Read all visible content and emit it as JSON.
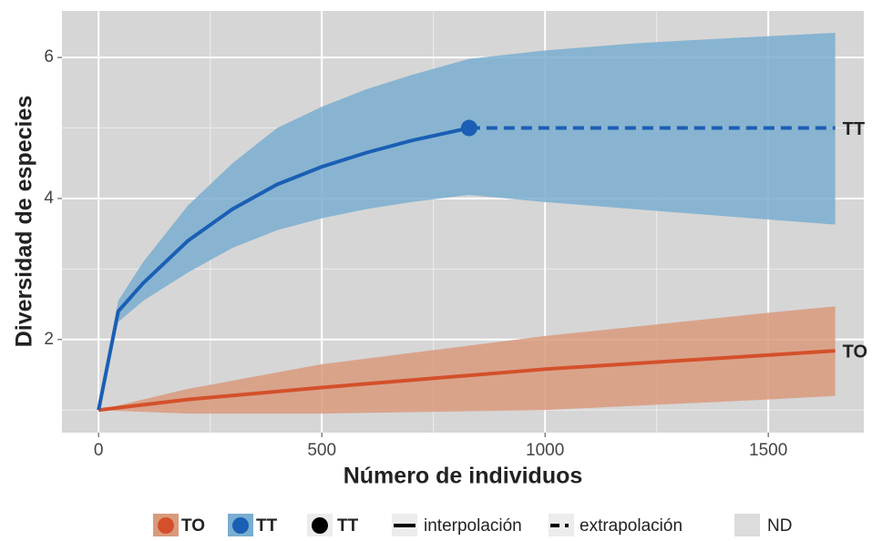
{
  "chart_data": {
    "type": "rarefaction",
    "x_label": "Número de individuos",
    "y_label": "Diversidad de especies",
    "xlim": [
      -82,
      1714
    ],
    "ylim": [
      0.68,
      6.66
    ],
    "xticks": [
      0,
      500,
      1000,
      1500
    ],
    "yticks": [
      2,
      4,
      6
    ],
    "x_minor_grid": [
      250,
      750,
      1250
    ],
    "y_minor_grid": [
      1,
      3,
      5
    ],
    "grid": true,
    "panel_color": "#d6d6d6",
    "series": [
      {
        "name": "TO",
        "color": "#d4502a",
        "band_color": "#d99a7c",
        "x": [
          0,
          200,
          500,
          1000,
          1500,
          1650
        ],
        "values": [
          1,
          1.15,
          1.32,
          1.58,
          1.78,
          1.84
        ],
        "upper": [
          1,
          1.3,
          1.65,
          2.05,
          2.38,
          2.47
        ],
        "lower": [
          1,
          0.95,
          0.95,
          1.0,
          1.15,
          1.2
        ]
      },
      {
        "name": "TT",
        "color": "#1a5fb4",
        "band_color": "#7aaed0",
        "x": [
          0,
          44,
          100,
          200,
          300,
          400,
          500,
          600,
          700,
          830,
          1000,
          1200,
          1400,
          1650
        ],
        "values": [
          1,
          2.4,
          2.8,
          3.4,
          3.85,
          4.2,
          4.45,
          4.65,
          4.82,
          5,
          null,
          null,
          null,
          null
        ],
        "extrapolation": [
          null,
          null,
          null,
          null,
          null,
          null,
          null,
          null,
          null,
          5,
          5,
          5,
          5,
          5
        ],
        "upper": [
          1,
          2.55,
          3.1,
          3.9,
          4.5,
          5.0,
          5.3,
          5.55,
          5.75,
          5.98,
          6.1,
          6.2,
          6.27,
          6.35
        ],
        "lower": [
          1,
          2.25,
          2.55,
          2.95,
          3.3,
          3.55,
          3.72,
          3.85,
          3.95,
          4.05,
          3.95,
          3.85,
          3.75,
          3.63
        ],
        "observed_x": 830,
        "observed_value": 5
      }
    ],
    "legend": {
      "point_label": "TT",
      "interpolation_label": "interpolación",
      "extrapolation_label": "extrapolación",
      "nd_label": "ND"
    }
  }
}
